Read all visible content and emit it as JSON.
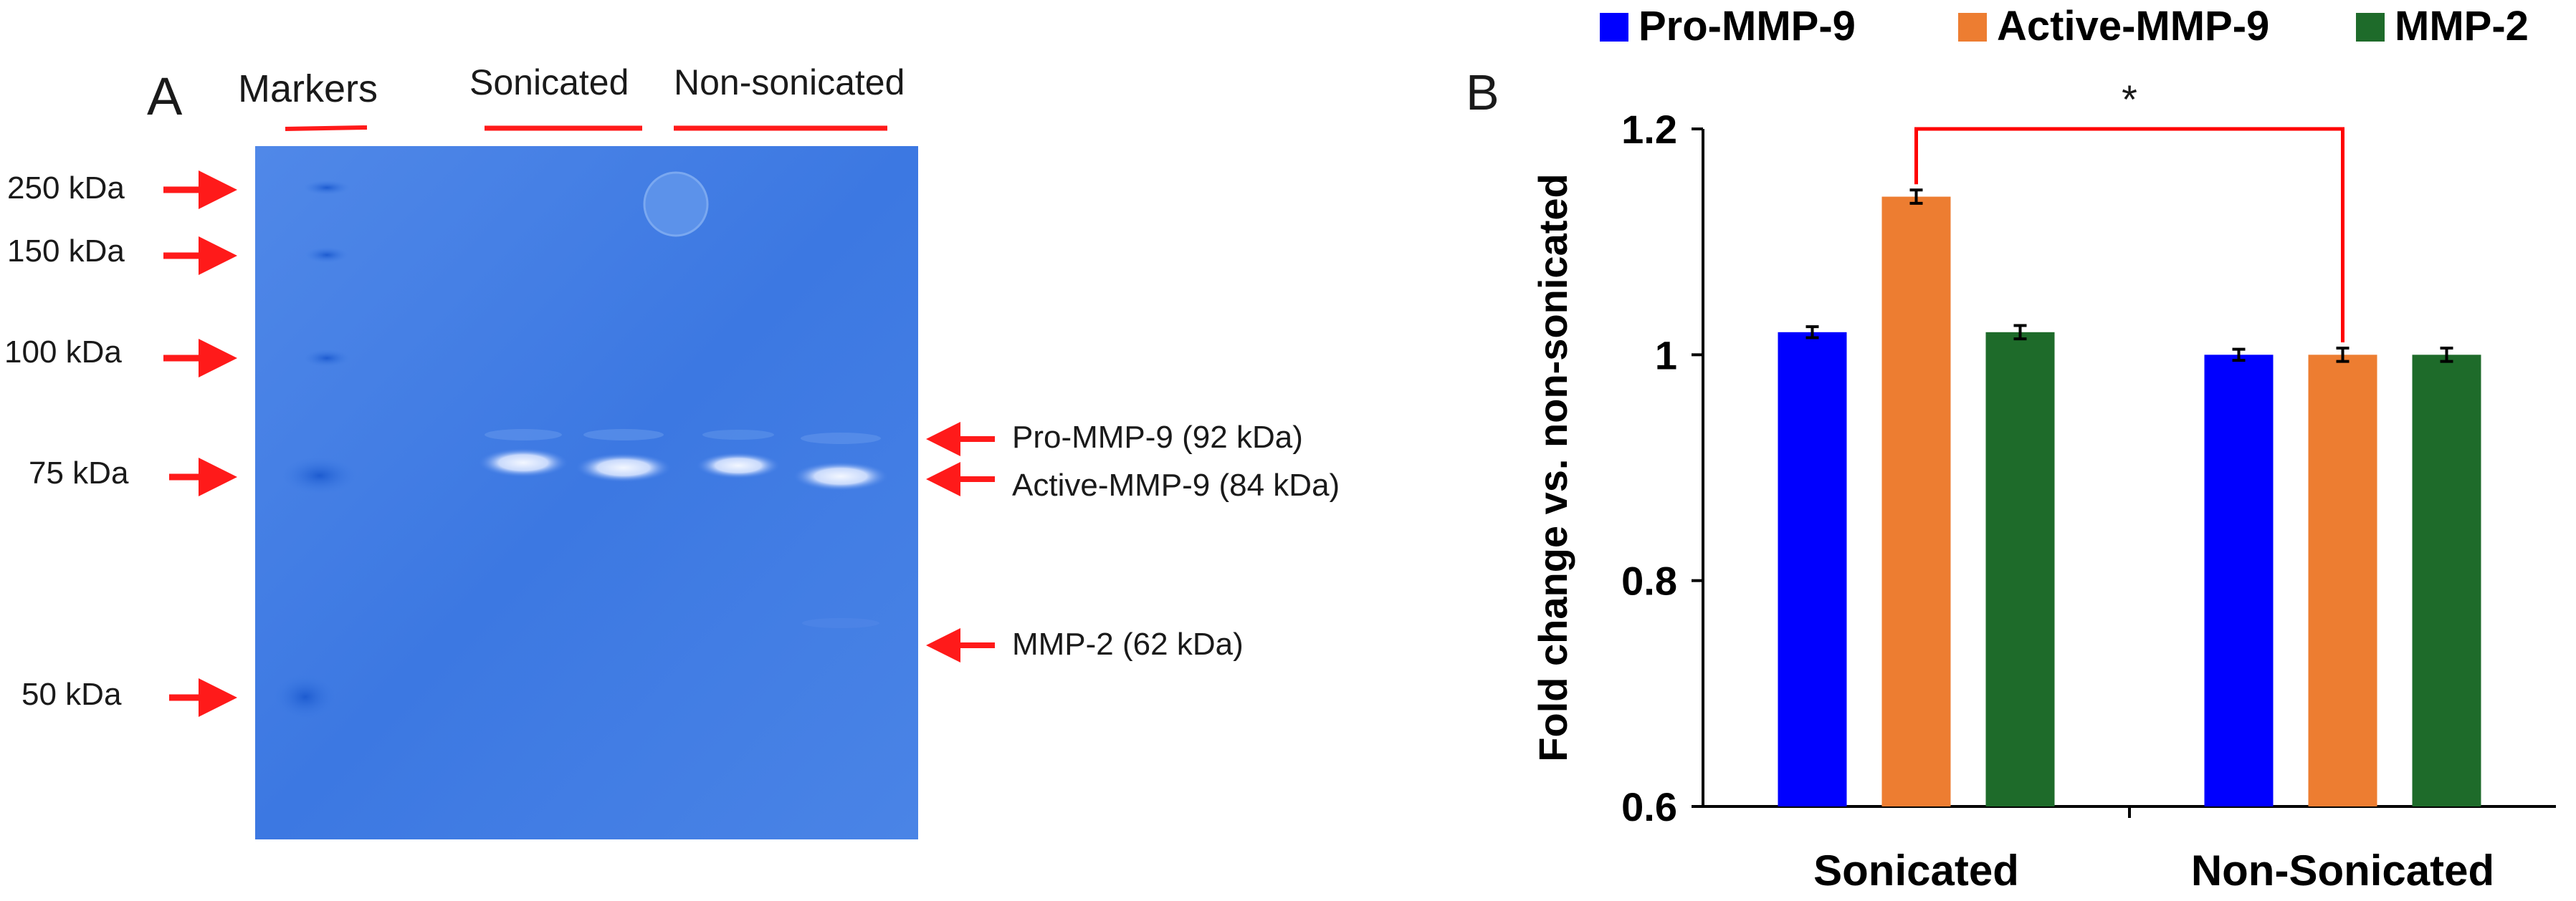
{
  "panel_a": {
    "panel_label": "A",
    "markers_label": "Markers",
    "sonicated_label": "Sonicated",
    "non_sonicated_label": "Non-sonicated",
    "ladder": [
      "250 kDa",
      "150 kDa",
      "100 kDa",
      "75 kDa",
      "50 kDa"
    ],
    "bands": [
      "Pro-MMP-9 (92 kDa)",
      "Active-MMP-9 (84 kDa)",
      "MMP-2 (62 kDa)"
    ],
    "colors": {
      "gel": "#3c7ae3",
      "arrow": "#ff1a1a"
    }
  },
  "panel_b": {
    "panel_label": "B",
    "significance": "*"
  },
  "chart_data": {
    "type": "bar",
    "categories": [
      "Sonicated",
      "Non-Sonicated"
    ],
    "series": [
      {
        "name": "Pro-MMP-9",
        "values": [
          1.02,
          1.0
        ],
        "errors": [
          0.003,
          0.003
        ],
        "color": "#0000ff"
      },
      {
        "name": "Active-MMP-9",
        "values": [
          1.14,
          1.0
        ],
        "errors": [
          0.004,
          0.004
        ],
        "color": "#ed7d31"
      },
      {
        "name": "MMP-2",
        "values": [
          1.02,
          1.0
        ],
        "errors": [
          0.004,
          0.004
        ],
        "color": "#1e6b2a"
      }
    ],
    "xlabel": "",
    "ylabel": "Fold change vs. non-sonicated",
    "ylim": [
      0.6,
      1.2
    ],
    "yticks": [
      "0.6",
      "0.8",
      "1",
      "1.2"
    ],
    "legend_position": "top",
    "significance_bracket": {
      "label": "*",
      "from_series": "Active-MMP-9",
      "between": [
        "Sonicated",
        "Non-Sonicated"
      ],
      "color": "#ff0000"
    }
  }
}
